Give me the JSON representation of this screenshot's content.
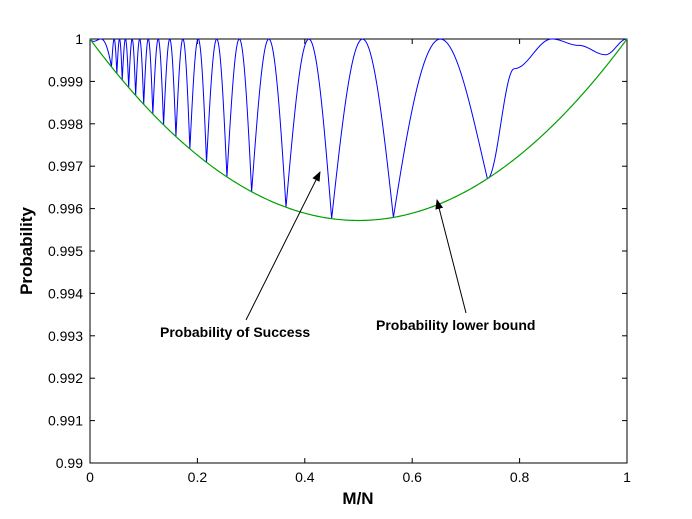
{
  "chart_data": {
    "type": "line",
    "title": "",
    "xlabel": "M/N",
    "ylabel": "Probability",
    "xlim": [
      0,
      1
    ],
    "ylim": [
      0.99,
      1
    ],
    "grid": false,
    "x_ticks": [
      0,
      0.2,
      0.4,
      0.6,
      0.8,
      1
    ],
    "x_tick_labels": [
      "0",
      "0.2",
      "0.4",
      "0.6",
      "0.8",
      "1"
    ],
    "y_ticks": [
      0.99,
      0.991,
      0.992,
      0.993,
      0.994,
      0.995,
      0.996,
      0.997,
      0.998,
      0.999,
      1
    ],
    "y_tick_labels": [
      "0.99",
      "0.991",
      "0.992",
      "0.993",
      "0.994",
      "0.995",
      "0.996",
      "0.997",
      "0.998",
      "0.999",
      "1"
    ],
    "series": [
      {
        "color": "#0000ff",
        "description_points": [
          [
            0.0,
            1.0
          ],
          [
            0.45,
            0.99582
          ],
          [
            0.565,
            0.99583
          ],
          [
            0.645,
            1.0
          ],
          [
            0.74,
            0.99665
          ],
          [
            0.86,
            1.0
          ],
          [
            0.96,
            0.99963
          ],
          [
            1.0,
            1.0
          ]
        ],
        "cusp_x": [
          0.04,
          0.05,
          0.06,
          0.072,
          0.085,
          0.1,
          0.117,
          0.137,
          0.16,
          0.186,
          0.217,
          0.255,
          0.301,
          0.365,
          0.45,
          0.565,
          0.74
        ]
      },
      {
        "color": "#00a000",
        "points": [
          [
            0,
            1.0
          ],
          [
            0.1,
            0.99845
          ],
          [
            0.2,
            0.99725
          ],
          [
            0.3,
            0.99635
          ],
          [
            0.4,
            0.99585
          ],
          [
            0.5,
            0.99572
          ],
          [
            0.6,
            0.99585
          ],
          [
            0.7,
            0.99635
          ],
          [
            0.8,
            0.99725
          ],
          [
            0.9,
            0.99845
          ],
          [
            1.0,
            1.0
          ]
        ]
      }
    ],
    "annotations": [
      {
        "text": "Probability of Success",
        "target": [
          0.43,
          0.9968
        ]
      },
      {
        "text": "Probability lower bound",
        "target": [
          0.645,
          0.99607
        ]
      }
    ]
  }
}
